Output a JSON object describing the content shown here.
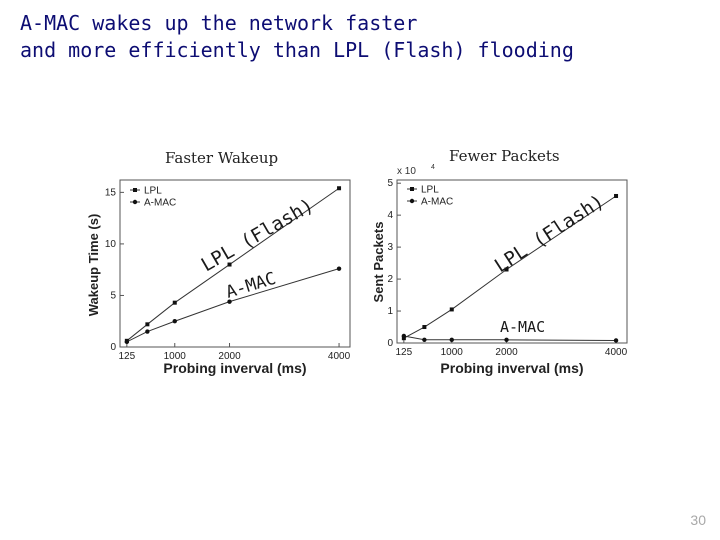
{
  "slide": {
    "title_line1": "A-MAC wakes up the network faster",
    "title_line2": "and more efficiently than LPL (Flash) flooding",
    "page_number": "30"
  },
  "colors": {
    "title": "#0d0d73",
    "series": "#333333"
  },
  "chart_data": [
    {
      "type": "line",
      "panel_heading": "Faster Wakeup",
      "xlabel": "Probing inverval (ms)",
      "ylabel": "Wakeup Time (s)",
      "x_ticks": [
        "125",
        "1000",
        "2000",
        "4000"
      ],
      "y_ticks": [
        "0",
        "5",
        "10",
        "15"
      ],
      "xlim": [
        0,
        4200
      ],
      "ylim": [
        0,
        16.2
      ],
      "legend_location": "top-left",
      "grid": false,
      "series": [
        {
          "name": "LPL",
          "marker": "square",
          "x": [
            125,
            500,
            1000,
            2000,
            4000
          ],
          "y": [
            0.6,
            2.2,
            4.3,
            8.0,
            15.4
          ]
        },
        {
          "name": "A-MAC",
          "marker": "circle",
          "x": [
            125,
            500,
            1000,
            2000,
            4000
          ],
          "y": [
            0.5,
            1.5,
            2.5,
            4.4,
            7.6
          ]
        }
      ],
      "annotations": [
        "LPL (Flash)",
        "A-MAC"
      ]
    },
    {
      "type": "line",
      "panel_heading": "Fewer Packets",
      "xlabel": "Probing inverval (ms)",
      "ylabel": "Sent Packets",
      "y_multiplier": "x 10",
      "y_multiplier_exp": "4",
      "x_ticks": [
        "125",
        "1000",
        "2000",
        "4000"
      ],
      "y_ticks": [
        "0",
        "1",
        "2",
        "3",
        "4",
        "5"
      ],
      "xlim": [
        0,
        4200
      ],
      "ylim": [
        0,
        5.1
      ],
      "legend_location": "top-left",
      "grid": false,
      "series": [
        {
          "name": "LPL",
          "marker": "square",
          "x": [
            125,
            500,
            1000,
            2000,
            4000
          ],
          "y": [
            0.15,
            0.5,
            1.05,
            2.3,
            4.6
          ]
        },
        {
          "name": "A-MAC",
          "marker": "circle",
          "x": [
            125,
            500,
            1000,
            2000,
            4000
          ],
          "y": [
            0.22,
            0.1,
            0.1,
            0.1,
            0.08
          ]
        }
      ],
      "annotations": [
        "LPL (Flash)",
        "A-MAC"
      ]
    }
  ]
}
